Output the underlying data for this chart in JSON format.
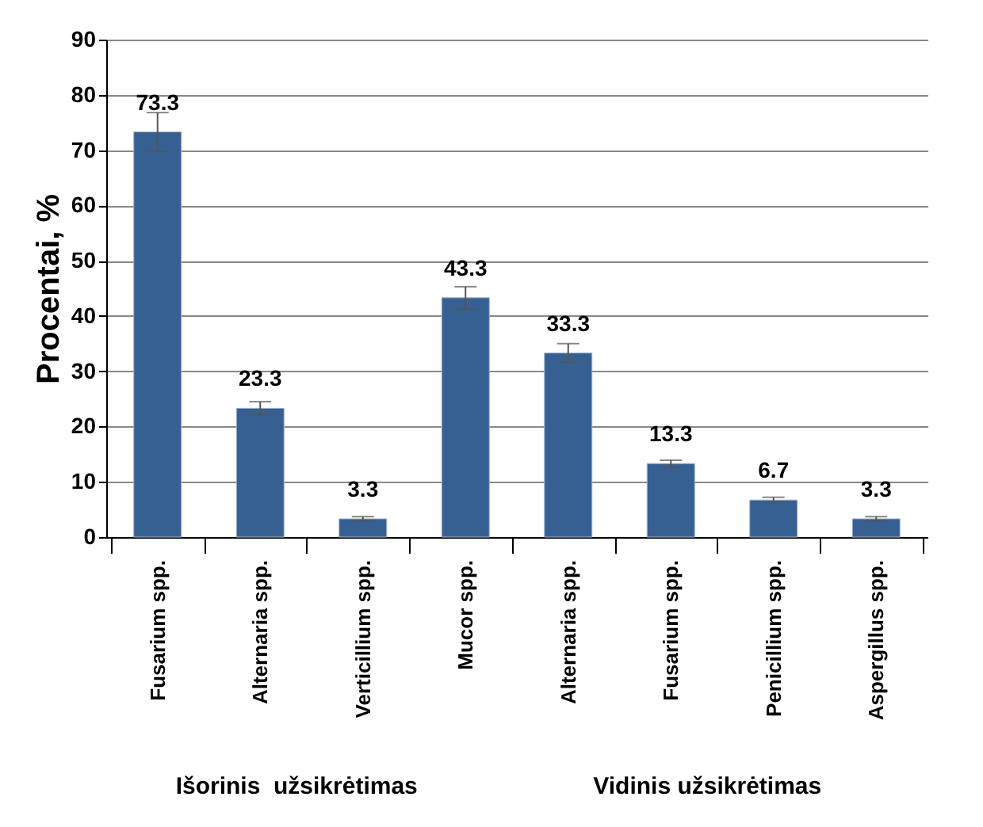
{
  "chart_data": {
    "type": "bar",
    "ylabel": "Procentai, %",
    "categories": [
      "Fusarium spp.",
      "Alternaria spp.",
      "Verticillium spp.",
      "Mucor spp.",
      "Alternaria spp.",
      "Fusarium spp.",
      "Penicillium spp.",
      "Aspergillus spp."
    ],
    "values": [
      73.3,
      23.3,
      3.3,
      43.3,
      33.3,
      13.3,
      6.7,
      3.3
    ],
    "errors": [
      3.5,
      1.2,
      0.4,
      2,
      1.7,
      0.6,
      0.5,
      0.4
    ],
    "color": "#376092",
    "ylim": [
      0,
      90
    ],
    "yticks": [
      0,
      10,
      20,
      30,
      40,
      50,
      60,
      70,
      80,
      90
    ],
    "grid": "y",
    "data_labels": true,
    "legend": false,
    "annotations": [
      "Išorinis  užsikrėtimas",
      "Vidinis užsikrėtimas"
    ]
  }
}
